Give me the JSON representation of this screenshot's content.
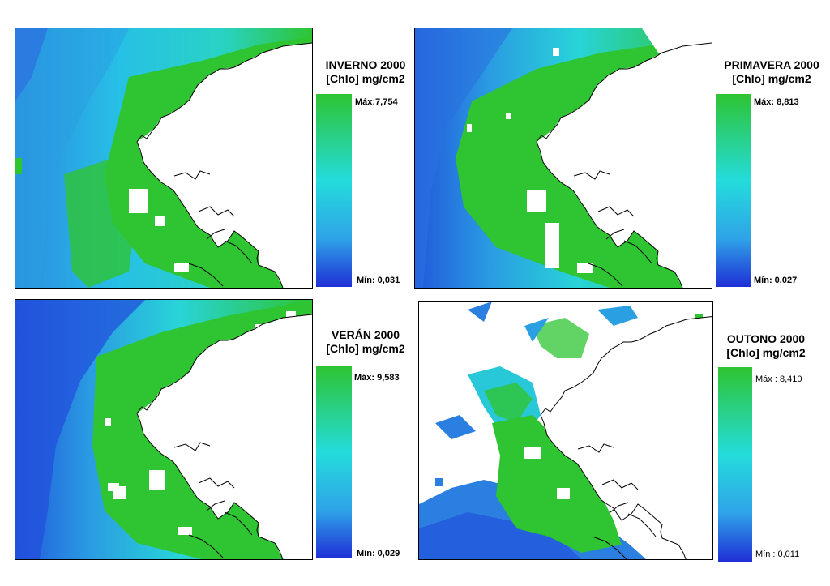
{
  "colors": {
    "high": "#2ec432",
    "mid": "#24dcdc",
    "low": "#1f3fd6",
    "land": "#ffffff",
    "coast": "#000000"
  },
  "legend_scale": "blue-cyan-green gradient (min to max)",
  "panels": [
    {
      "id": "inverno",
      "title_line1": "INVERNO 2000",
      "title_line2": "[Chlo]  mg/cm2",
      "max_label": "Máx:7,754",
      "min_label": "Mín: 0,031"
    },
    {
      "id": "primavera",
      "title_line1": "PRIMAVERA 2000",
      "title_line2": "[Chlo]  mg/cm2",
      "max_label": "Máx: 8,813",
      "min_label": "Mín: 0,027"
    },
    {
      "id": "veran",
      "title_line1": "VERÁN 2000",
      "title_line2": "[Chlo]  mg/cm2",
      "max_label": "Máx: 9,583",
      "min_label": "Mín: 0,029"
    },
    {
      "id": "outono",
      "title_line1": "OUTONO 2000",
      "title_line2": "[Chlo]  mg/cm2",
      "max_label": "Máx : 8,410",
      "min_label": "Mín : 0,011"
    }
  ]
}
